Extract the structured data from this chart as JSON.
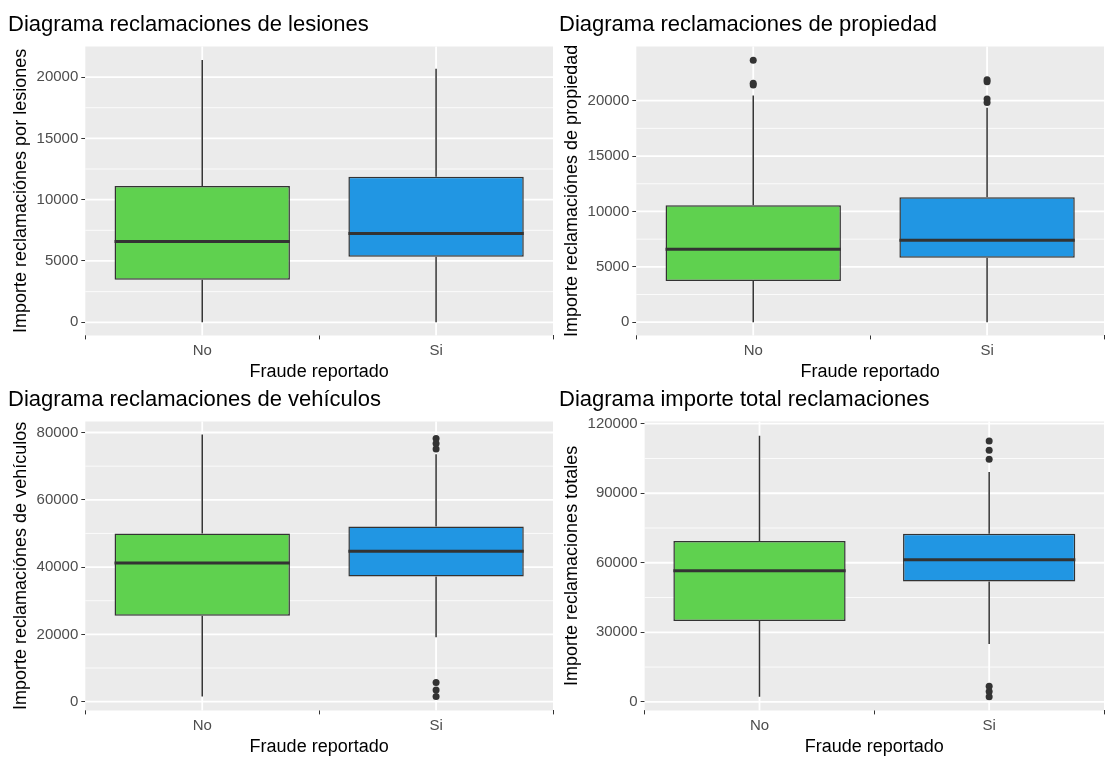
{
  "chart_data": [
    {
      "type": "box",
      "title": "Diagrama reclamaciones de lesiones",
      "xlabel": "Fraude reportado",
      "ylabel": "Importe reclamaciónes por lesiones",
      "categories": [
        "No",
        "Si"
      ],
      "colors": [
        "#5fd14f",
        "#2196e3"
      ],
      "boxes": [
        {
          "low": 0,
          "q1": 3470,
          "median": 6590,
          "q3": 11110,
          "high": 21390
        },
        {
          "low": 0,
          "q1": 5340,
          "median": 7240,
          "q3": 11870,
          "high": 20680
        }
      ],
      "ylim": [
        -1070,
        22500
      ],
      "yticks": [
        0,
        5000,
        10000,
        15000,
        20000
      ],
      "grid": true
    },
    {
      "type": "box",
      "title": "Diagrama reclamaciones de propiedad",
      "xlabel": "Fraude reportado",
      "ylabel": "Importe reclamaciónes de propiedad",
      "categories": [
        "No",
        "Si"
      ],
      "colors": [
        "#5fd14f",
        "#2196e3"
      ],
      "boxes": [
        {
          "low": 0,
          "q1": 3730,
          "median": 6580,
          "q3": 10560,
          "high": 20470,
          "outliers": [
            21410,
            21570,
            23640
          ]
        },
        {
          "low": 0,
          "q1": 5830,
          "median": 7400,
          "q3": 11290,
          "high": 19370,
          "outliers": [
            19840,
            20160,
            21720,
            21880
          ]
        }
      ],
      "ylim": [
        -1190,
        24900
      ],
      "yticks": [
        0,
        5000,
        10000,
        15000,
        20000
      ],
      "grid": true
    },
    {
      "type": "box",
      "title": "Diagrama reclamaciones de vehículos",
      "xlabel": "Fraude reportado",
      "ylabel": "Importe reclamaciónes de vehículos",
      "categories": [
        "No",
        "Si"
      ],
      "colors": [
        "#5fd14f",
        "#2196e3"
      ],
      "boxes": [
        {
          "low": 1550,
          "q1": 25570,
          "median": 41200,
          "q3": 50000,
          "high": 79400
        },
        {
          "low": 19150,
          "q1": 37170,
          "median": 44720,
          "q3": 52070,
          "high": 73500,
          "outliers": [
            1550,
            3500,
            5690,
            75100,
            76700,
            78200
          ]
        }
      ],
      "ylim": [
        -2600,
        83300
      ],
      "yticks": [
        0,
        20000,
        40000,
        60000,
        80000
      ],
      "grid": true
    },
    {
      "type": "box",
      "title": "Diagrama importe total reclamaciones",
      "xlabel": "Fraude reportado",
      "ylabel": "Importe reclamaciones totales",
      "categories": [
        "No",
        "Si"
      ],
      "colors": [
        "#5fd14f",
        "#2196e3"
      ],
      "boxes": [
        {
          "low": 2240,
          "q1": 34860,
          "median": 56560,
          "q3": 69430,
          "high": 114770
        },
        {
          "low": 24990,
          "q1": 51920,
          "median": 61350,
          "q3": 72570,
          "high": 99200,
          "outliers": [
            2200,
            4500,
            6700,
            104700,
            108500,
            112500
          ]
        }
      ],
      "ylim": [
        -3700,
        121000
      ],
      "yticks": [
        0,
        30000,
        60000,
        90000,
        120000
      ],
      "grid": true
    }
  ]
}
